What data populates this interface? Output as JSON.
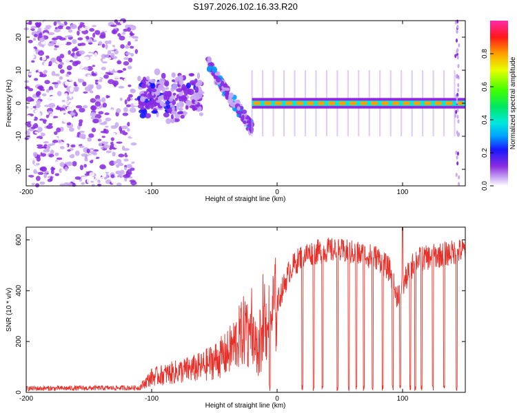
{
  "figure": {
    "title": "S197.2026.102.16.33.R20"
  },
  "chart_data": [
    {
      "type": "heatmap",
      "name": "spectrogram",
      "xlabel": "Height of straight line (km)",
      "ylabel": "Frequency (Hz)",
      "xlim": [
        -200,
        150
      ],
      "ylim": [
        -25,
        25
      ],
      "xticks": [
        -200,
        -100,
        0,
        100
      ],
      "yticks": [
        -20,
        -10,
        0,
        10,
        20
      ],
      "colorbar": {
        "label": "Normalized spectral amplitude",
        "range": [
          0,
          1
        ],
        "ticks": [
          0.0,
          0.2,
          0.4,
          0.6,
          0.8
        ],
        "tick_labels": [
          "0.0",
          "0.2",
          "0.4",
          "0.6",
          "0.8"
        ]
      },
      "features": [
        {
          "kind": "noise",
          "x_range": [
            -200,
            -120
          ],
          "y_range": [
            -25,
            25
          ],
          "amplitude": 0.1
        },
        {
          "kind": "blobs",
          "x_range": [
            -110,
            -60
          ],
          "y_center": 2,
          "y_spread": 8,
          "amplitude": 0.25
        },
        {
          "kind": "diagonal",
          "x_range": [
            -55,
            -20
          ],
          "y_start": 12,
          "y_end": -8,
          "amplitude": 0.3
        },
        {
          "kind": "carrier",
          "x_range": [
            -20,
            150
          ],
          "y": 0,
          "amplitude": 0.85
        }
      ]
    },
    {
      "type": "line",
      "name": "snr",
      "xlabel": "Height of straight line (km)",
      "ylabel": "SNR (10 * v/v)",
      "xlim": [
        -200,
        150
      ],
      "ylim": [
        0,
        650
      ],
      "xticks": [
        -200,
        -100,
        0,
        100
      ],
      "yticks": [
        0,
        200,
        400,
        600
      ],
      "color": "#e8302a",
      "series": [
        {
          "name": "SNR",
          "profile_x": [
            -200,
            -110,
            -100,
            -80,
            -60,
            -40,
            -25,
            -15,
            -10,
            -5,
            0,
            10,
            20,
            40,
            60,
            80,
            90,
            95,
            100,
            110,
            130,
            150
          ],
          "profile_y": [
            15,
            18,
            60,
            80,
            100,
            150,
            250,
            150,
            250,
            300,
            350,
            480,
            540,
            560,
            550,
            530,
            480,
            380,
            420,
            520,
            540,
            560
          ],
          "dropout_x": [
            -6,
            20,
            29,
            36,
            48,
            57,
            63,
            69,
            76,
            84,
            92,
            98,
            106,
            110,
            115,
            124,
            133,
            143
          ]
        }
      ]
    }
  ]
}
